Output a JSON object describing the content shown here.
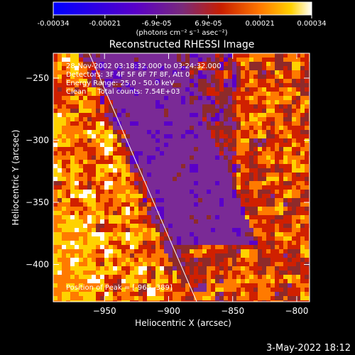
{
  "colorbar": {
    "ticks": [
      "-0.00034",
      "-0.00021",
      "-6.9e-05",
      "6.9e-05",
      "0.00021",
      "0.00034"
    ],
    "unit_label": "(photons cm⁻² s⁻¹ asec⁻²)",
    "range": [
      -0.00034,
      0.00034
    ],
    "colormap": [
      "#0000ff",
      "#5a00c8",
      "#7a2a96",
      "#8e2a2a",
      "#d02000",
      "#ff7a00",
      "#ffd200",
      "#ffffff"
    ]
  },
  "chart_data": {
    "type": "heatmap",
    "title": "Reconstructed RHESSI Image",
    "xlabel": "Heliocentric X (arcsec)",
    "ylabel": "Heliocentric Y (arcsec)",
    "xlim": [
      -990,
      -790
    ],
    "ylim": [
      -430,
      -230
    ],
    "xticks": [
      -950,
      -900,
      -850,
      -800
    ],
    "yticks": [
      -250,
      -300,
      -350,
      -400
    ],
    "annotations": [
      "28-Nov-2002 03:18:32.000 to 03:24:32.000",
      "Detectors: 3F 4F 5F 6F 7F 8F, Att 0",
      "Energy Range: 25.0 - 50.0 keV",
      "Clean     Total counts: 7.54E+03"
    ],
    "peak_label": "Position of Peak = [-965,-389]",
    "peak": [
      -965,
      -389
    ],
    "limb_line": [
      [
        -962,
        -230
      ],
      [
        -878,
        -430
      ]
    ]
  },
  "footer": {
    "date": "3-May-2022 18:12"
  }
}
